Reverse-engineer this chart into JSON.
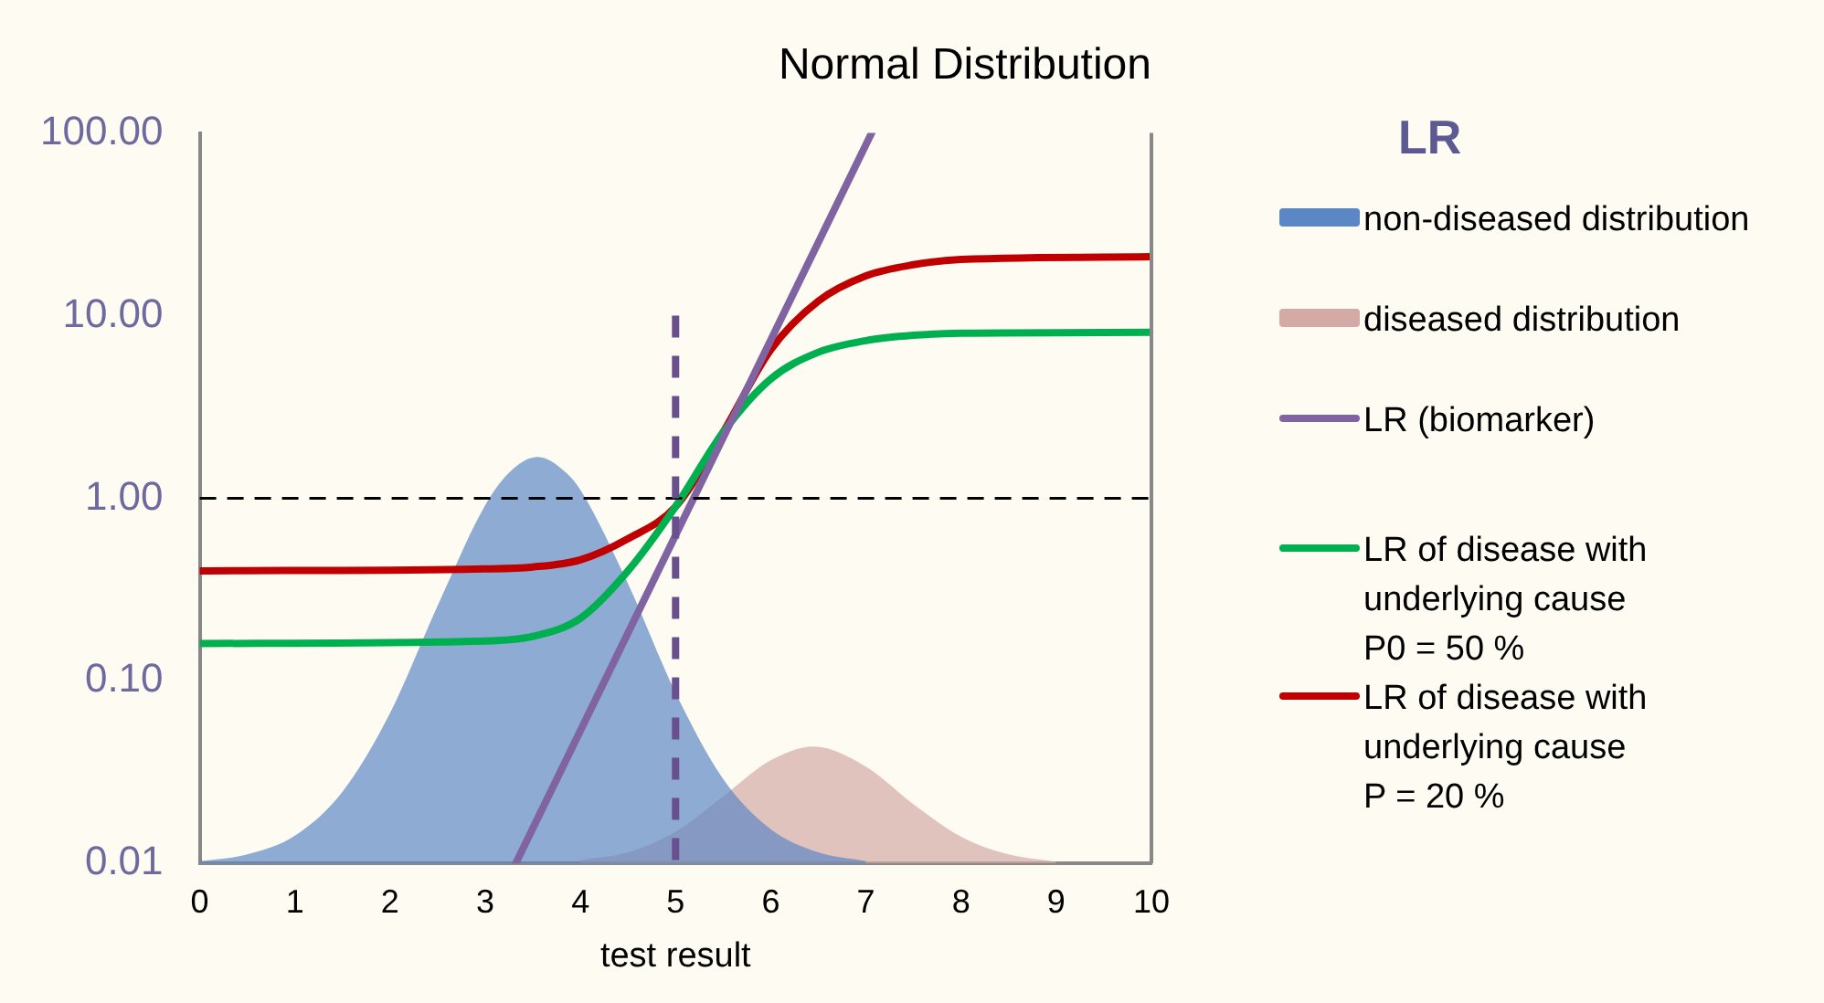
{
  "chart_data": {
    "type": "line",
    "title": "Normal Distribution",
    "xlabel": "test result",
    "legend_title": "LR",
    "legend": "right",
    "xlim": [
      0,
      10
    ],
    "xticks": [
      0,
      1,
      2,
      3,
      4,
      5,
      6,
      7,
      8,
      9,
      10
    ],
    "ylim": [
      0.01,
      100
    ],
    "yticks": [
      {
        "value": 0.01,
        "label": "0.01"
      },
      {
        "value": 0.1,
        "label": "0.10"
      },
      {
        "value": 1,
        "label": "1.00"
      },
      {
        "value": 10,
        "label": "10.00"
      },
      {
        "value": 100,
        "label": "100.00"
      }
    ],
    "log": "y",
    "grid": false,
    "marker": "none",
    "ref_lines": [
      {
        "axis": "y",
        "value": 1,
        "color": "#000000",
        "line_style": "dashed"
      },
      {
        "axis": "x",
        "value": 5,
        "color": "#6a4f8e",
        "line_style": "dashed"
      }
    ],
    "series": [
      {
        "name": "non-diseased distribution",
        "type": "area",
        "color": "#5b87c5",
        "x": [
          0,
          0.5,
          1,
          1.5,
          2,
          2.5,
          3,
          3.25,
          3.55,
          3.85,
          4,
          4.5,
          5,
          5.5,
          6,
          6.5,
          7
        ],
        "values": [
          0.0103,
          0.0112,
          0.0142,
          0.0247,
          0.0667,
          0.258,
          0.916,
          1.38,
          1.68,
          1.38,
          1.11,
          0.34,
          0.086,
          0.029,
          0.0154,
          0.0115,
          0.0103
        ]
      },
      {
        "name": "diseased distribution",
        "type": "area",
        "color": "#d4aaa6",
        "x": [
          4,
          4.5,
          5,
          5.5,
          6,
          6.45,
          7,
          7.5,
          8,
          8.5,
          9
        ],
        "values": [
          0.0104,
          0.0115,
          0.0149,
          0.0233,
          0.0367,
          0.0437,
          0.0339,
          0.0211,
          0.014,
          0.0112,
          0.0102
        ]
      },
      {
        "name": "LR (biomarker)",
        "type": "line",
        "color": "#8064a2",
        "x": [
          3.32,
          7.06
        ],
        "values": [
          0.01,
          100
        ]
      },
      {
        "name": "LR of disease with underlying cause\n P0 = 50 %",
        "type": "line",
        "color": "#00b050",
        "x": [
          0,
          3,
          3.5,
          4,
          4.5,
          5,
          5.5,
          6,
          6.5,
          7,
          7.5,
          8,
          10
        ],
        "values": [
          0.16,
          0.165,
          0.175,
          0.22,
          0.4,
          0.9,
          2.3,
          4.5,
          6.3,
          7.3,
          7.8,
          8,
          8.1
        ]
      },
      {
        "name": "LR of disease with underlying cause\nP = 20 %",
        "type": "line",
        "color": "#c00000",
        "x": [
          0,
          3,
          3.5,
          4,
          4.5,
          5,
          5.5,
          6,
          6.5,
          7,
          7.5,
          8,
          10
        ],
        "values": [
          0.4,
          0.41,
          0.42,
          0.46,
          0.6,
          0.9,
          2.3,
          6.5,
          12,
          16.5,
          19,
          20.3,
          21
        ]
      }
    ]
  }
}
